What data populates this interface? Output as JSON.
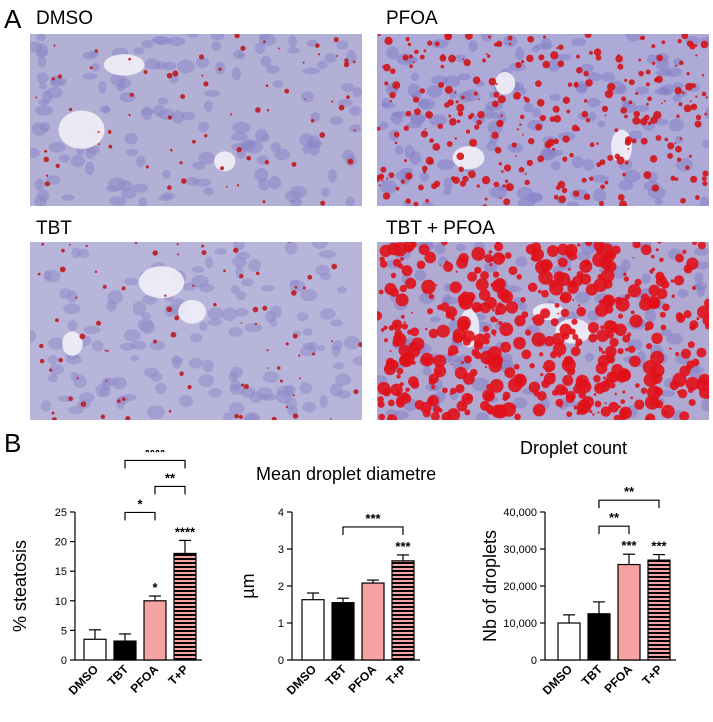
{
  "panel_a": {
    "letter": "A",
    "images": [
      {
        "label": "DMSO",
        "name": "dmso",
        "base": "#b3b0d6",
        "cellColor": "#8a86c8",
        "dropColor": "#c0181c",
        "dropCount": 70,
        "dropMax": 2.2
      },
      {
        "label": "PFOA",
        "name": "pfoa",
        "base": "#aeaad8",
        "cellColor": "#8580c6",
        "dropColor": "#d21418",
        "dropCount": 300,
        "dropMax": 3.4
      },
      {
        "label": "TBT",
        "name": "tbt",
        "base": "#b8b5da",
        "cellColor": "#8f8bc9",
        "dropColor": "#bf1a1e",
        "dropCount": 80,
        "dropMax": 2.2
      },
      {
        "label": "TBT + PFOA",
        "name": "tbt-pfoa",
        "base": "#b0a9d2",
        "cellColor": "#8781c4",
        "dropColor": "#e0111a",
        "dropCount": 520,
        "dropMax": 6.5
      }
    ]
  },
  "panel_b": {
    "letter": "B"
  },
  "chart_data": [
    {
      "type": "bar",
      "title": "",
      "ylabel": "% steatosis",
      "categories": [
        "DMSO",
        "TBT",
        "PFOA",
        "T+P"
      ],
      "values": [
        3.5,
        3.2,
        10,
        18
      ],
      "errors": [
        1.6,
        1.2,
        0.8,
        2.2
      ],
      "ylim": [
        0,
        25
      ],
      "yticks": [
        0,
        5,
        10,
        15,
        20,
        25
      ],
      "bar_styles": [
        "white",
        "black",
        "pink",
        "striped"
      ],
      "bar_annotations": [
        "",
        "",
        "*",
        "****"
      ],
      "brackets": [
        {
          "from": 1,
          "to": 2,
          "label": "*"
        },
        {
          "from": 2,
          "to": 3,
          "label": "**"
        },
        {
          "from": 1,
          "to": 3,
          "label": "****"
        }
      ]
    },
    {
      "type": "bar",
      "title": "Mean droplet diametre",
      "ylabel": "µm",
      "categories": [
        "DMSO",
        "TBT",
        "PFOA",
        "T+P"
      ],
      "values": [
        1.63,
        1.55,
        2.08,
        2.68
      ],
      "errors": [
        0.18,
        0.12,
        0.08,
        0.16
      ],
      "ylim": [
        0,
        4
      ],
      "yticks": [
        0,
        1,
        2,
        3,
        4
      ],
      "bar_styles": [
        "white",
        "black",
        "pink",
        "striped"
      ],
      "bar_annotations": [
        "",
        "",
        "",
        "***"
      ],
      "brackets": [
        {
          "from": 1,
          "to": 3,
          "label": "***"
        }
      ]
    },
    {
      "type": "bar",
      "title": "Droplet count",
      "ylabel": "Nb of droplets",
      "categories": [
        "DMSO",
        "TBT",
        "PFOA",
        "T+P"
      ],
      "values": [
        10000,
        12500,
        25800,
        27000
      ],
      "errors": [
        2200,
        3200,
        2800,
        1500
      ],
      "ylim": [
        0,
        40000
      ],
      "yticks": [
        0,
        10000,
        20000,
        30000,
        40000
      ],
      "ytick_labels": [
        "0",
        "10,000",
        "20,000",
        "30,000",
        "40,000"
      ],
      "bar_styles": [
        "white",
        "black",
        "pink",
        "striped"
      ],
      "bar_annotations": [
        "",
        "",
        "***",
        "***"
      ],
      "brackets": [
        {
          "from": 1,
          "to": 2,
          "label": "**"
        },
        {
          "from": 1,
          "to": 3,
          "label": "**"
        }
      ]
    }
  ],
  "colors": {
    "pink": "#f6a3a3",
    "stripe": "#000000",
    "axis": "#000000"
  }
}
